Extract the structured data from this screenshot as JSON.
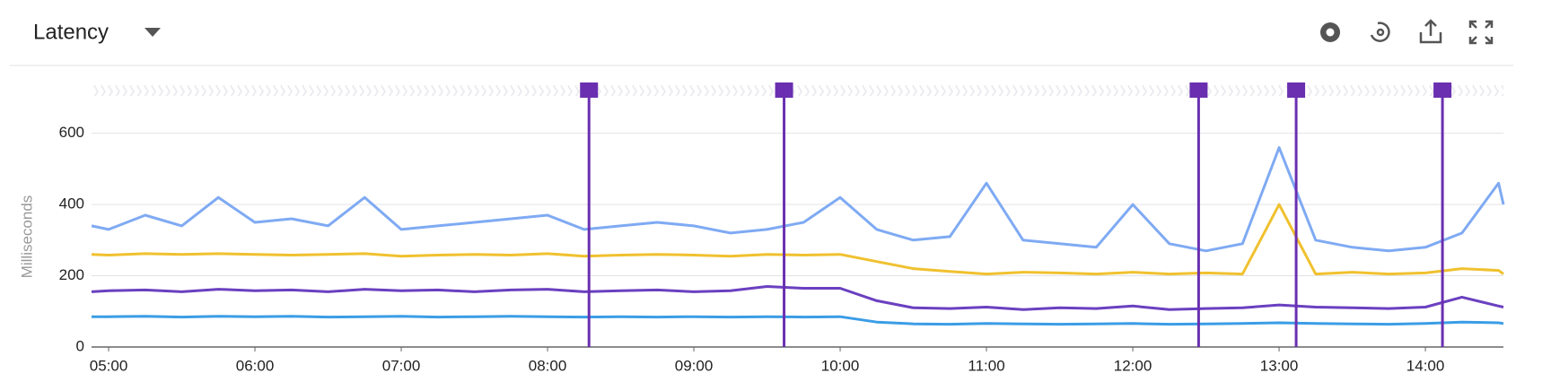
{
  "title": "Latency",
  "chart_data": {
    "type": "line",
    "y_label": "Milliseconds",
    "x": [
      "04:53",
      "05:00",
      "05:15",
      "05:30",
      "05:45",
      "06:00",
      "06:15",
      "06:30",
      "06:45",
      "07:00",
      "07:15",
      "07:30",
      "07:45",
      "08:00",
      "08:15",
      "08:30",
      "08:45",
      "09:00",
      "09:15",
      "09:30",
      "09:45",
      "10:00",
      "10:15",
      "10:30",
      "10:45",
      "11:00",
      "11:15",
      "11:30",
      "11:45",
      "12:00",
      "12:15",
      "12:30",
      "12:45",
      "13:00",
      "13:15",
      "13:30",
      "13:45",
      "14:00",
      "14:15",
      "14:30",
      "14:32"
    ],
    "series": [
      {
        "color": "#7faaf3",
        "values": [
          340,
          330,
          370,
          340,
          420,
          350,
          360,
          340,
          420,
          330,
          340,
          350,
          360,
          370,
          330,
          340,
          350,
          340,
          320,
          330,
          350,
          420,
          330,
          300,
          310,
          460,
          300,
          290,
          280,
          400,
          290,
          270,
          290,
          560,
          300,
          280,
          270,
          280,
          320,
          460,
          400
        ]
      },
      {
        "color": "#f0c12f",
        "values": [
          260,
          258,
          262,
          260,
          262,
          260,
          258,
          260,
          262,
          255,
          258,
          260,
          258,
          262,
          255,
          258,
          260,
          258,
          255,
          260,
          258,
          260,
          240,
          220,
          212,
          205,
          210,
          208,
          205,
          210,
          205,
          208,
          205,
          400,
          205,
          210,
          205,
          208,
          220,
          215,
          205
        ]
      },
      {
        "color": "#6a40c0",
        "values": [
          155,
          158,
          160,
          155,
          162,
          158,
          160,
          155,
          162,
          158,
          160,
          155,
          160,
          162,
          155,
          158,
          160,
          155,
          158,
          170,
          165,
          165,
          130,
          110,
          108,
          112,
          105,
          110,
          108,
          115,
          105,
          108,
          110,
          118,
          112,
          110,
          108,
          112,
          140,
          115,
          112
        ]
      },
      {
        "color": "#3b9de6",
        "values": [
          85,
          85,
          86,
          84,
          86,
          85,
          86,
          84,
          85,
          86,
          84,
          85,
          86,
          85,
          84,
          85,
          84,
          85,
          84,
          85,
          84,
          85,
          70,
          65,
          64,
          66,
          65,
          64,
          65,
          66,
          64,
          65,
          66,
          68,
          66,
          65,
          64,
          66,
          70,
          68,
          66
        ]
      }
    ],
    "events": [
      "08:17",
      "09:37",
      "12:27",
      "13:07",
      "14:07"
    ],
    "event_color": "#6a2fb0",
    "xlim": [
      "04:53",
      "14:32"
    ],
    "xticks": [
      "05:00",
      "06:00",
      "07:00",
      "08:00",
      "09:00",
      "10:00",
      "11:00",
      "12:00",
      "13:00",
      "14:00"
    ],
    "ylim": [
      0,
      720
    ],
    "yticks": [
      0,
      200,
      400,
      600
    ],
    "grid": true
  }
}
